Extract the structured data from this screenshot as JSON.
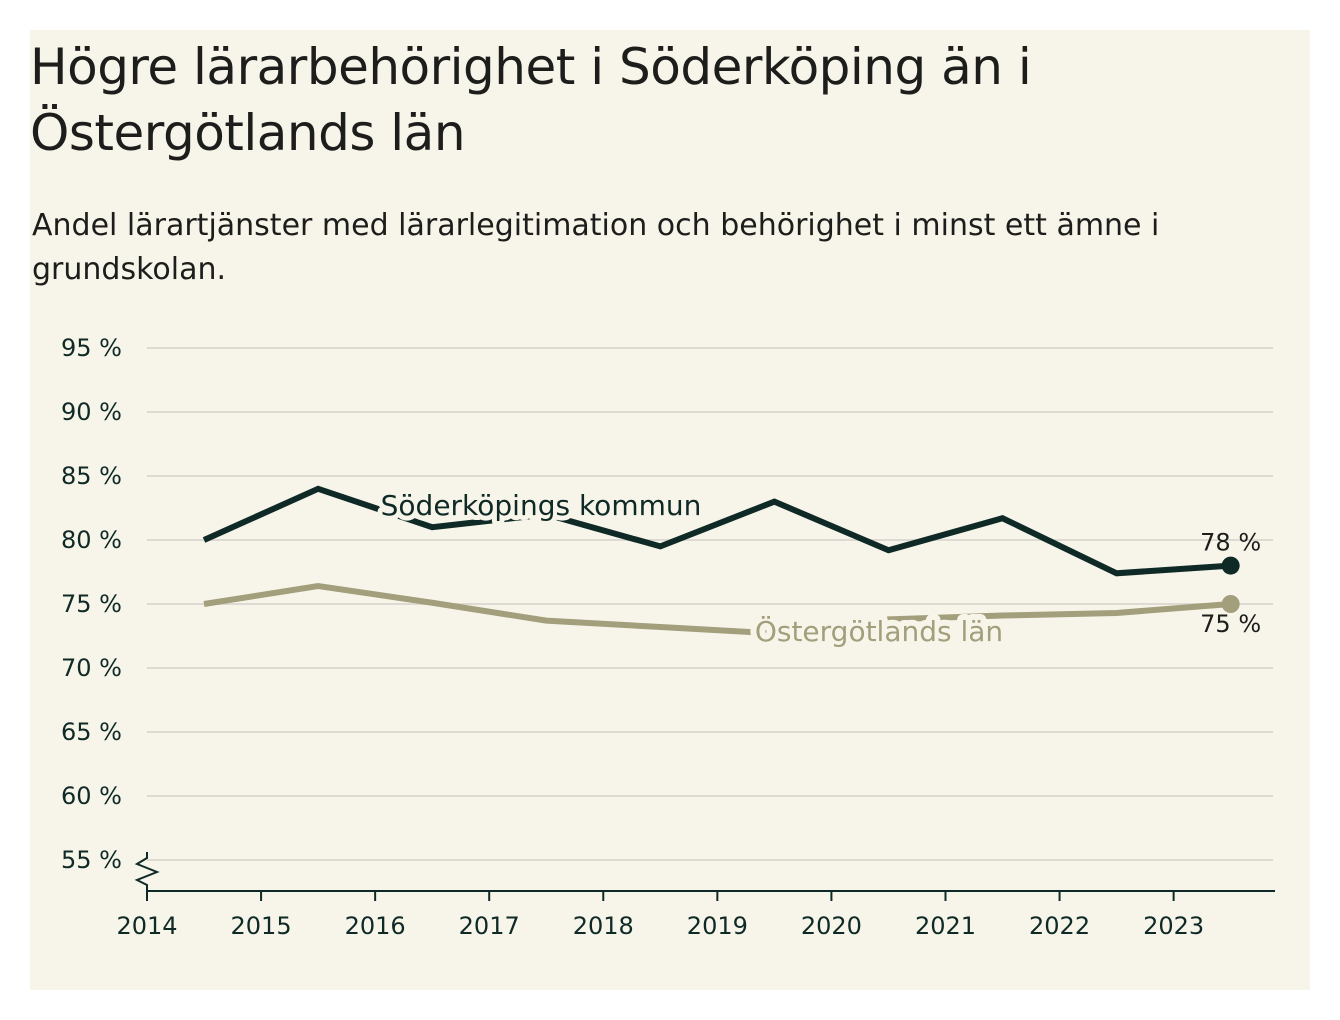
{
  "header": {
    "title": "Högre lärarbehörighet i Söderköping än i Östergötlands län",
    "subtitle": "Andel lärartjänster med lärarlegitimation och behörighet i minst ett ämne i grundskolan."
  },
  "colors": {
    "background": "#f7f5ea",
    "soderkoping": "#0f2a26",
    "ostergotland": "#a39e7b",
    "grid": "#dcdad3",
    "axis": "#0f2a26"
  },
  "chart_data": {
    "type": "line",
    "title": "Högre lärarbehörighet i Söderköping än i Östergötlands län",
    "subtitle": "Andel lärartjänster med lärarlegitimation och behörighet i minst ett ämne i grundskolan.",
    "xlabel": "",
    "ylabel": "",
    "x_ticks": [
      "2014",
      "2015",
      "2016",
      "2017",
      "2018",
      "2019",
      "2020",
      "2021",
      "2022",
      "2023"
    ],
    "x_points": [
      2014.5,
      2015.5,
      2016.5,
      2017.5,
      2018.5,
      2019.5,
      2020.5,
      2021.5,
      2022.5,
      2023.5
    ],
    "xlim": [
      2014,
      2024
    ],
    "y_ticks": [
      55,
      60,
      65,
      70,
      75,
      80,
      85,
      90,
      95
    ],
    "y_tick_labels": [
      "55 %",
      "60 %",
      "65 %",
      "70 %",
      "75 %",
      "80 %",
      "85 %",
      "90 %",
      "95 %"
    ],
    "ylim": [
      52.5,
      95
    ],
    "axis_break": true,
    "grid": true,
    "series": [
      {
        "name": "Söderköpings kommun",
        "color": "#0f2a26",
        "values": [
          80.0,
          84.0,
          81.0,
          82.0,
          79.5,
          83.0,
          79.2,
          81.7,
          77.4,
          78.0
        ],
        "end_label": "78 %",
        "label_position": "above-line"
      },
      {
        "name": "Östergötlands län",
        "color": "#a39e7b",
        "values": [
          75.0,
          76.4,
          75.1,
          73.7,
          73.2,
          72.7,
          73.8,
          74.1,
          74.3,
          75.0
        ],
        "end_label": "75 %",
        "label_position": "on-line"
      }
    ]
  }
}
